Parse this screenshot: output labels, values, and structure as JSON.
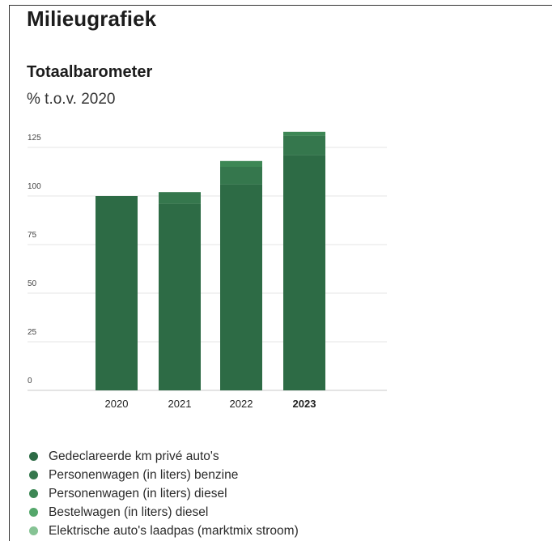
{
  "page": {
    "title": "Milieugrafiek"
  },
  "chart_data": {
    "type": "bar",
    "stacked": true,
    "title": "Totaalbarometer",
    "subtitle": "% t.o.v. 2020",
    "categories": [
      "2020",
      "2021",
      "2022",
      "2023"
    ],
    "highlighted_category": "2023",
    "ylim": [
      0,
      125
    ],
    "yticks": [
      0,
      25,
      50,
      75,
      100,
      125
    ],
    "grid": true,
    "legend_position": "bottom",
    "series": [
      {
        "name": "Gedeclareerde km privé auto's",
        "color": "#2d6b45",
        "values": [
          100,
          96,
          106,
          121
        ]
      },
      {
        "name": "Personenwagen (in liters) benzine",
        "color": "#35774d",
        "values": [
          0,
          6,
          9,
          10
        ]
      },
      {
        "name": "Personenwagen (in liters) diesel",
        "color": "#3d8755",
        "values": [
          0,
          0,
          3,
          2
        ]
      },
      {
        "name": "Bestelwagen (in liters) diesel",
        "color": "#55a76b",
        "values": [
          0,
          0,
          0,
          0
        ]
      },
      {
        "name": "Elektrische auto's laadpas (marktmix stroom)",
        "color": "#86c394",
        "values": [
          0,
          0,
          0,
          0
        ]
      }
    ]
  }
}
